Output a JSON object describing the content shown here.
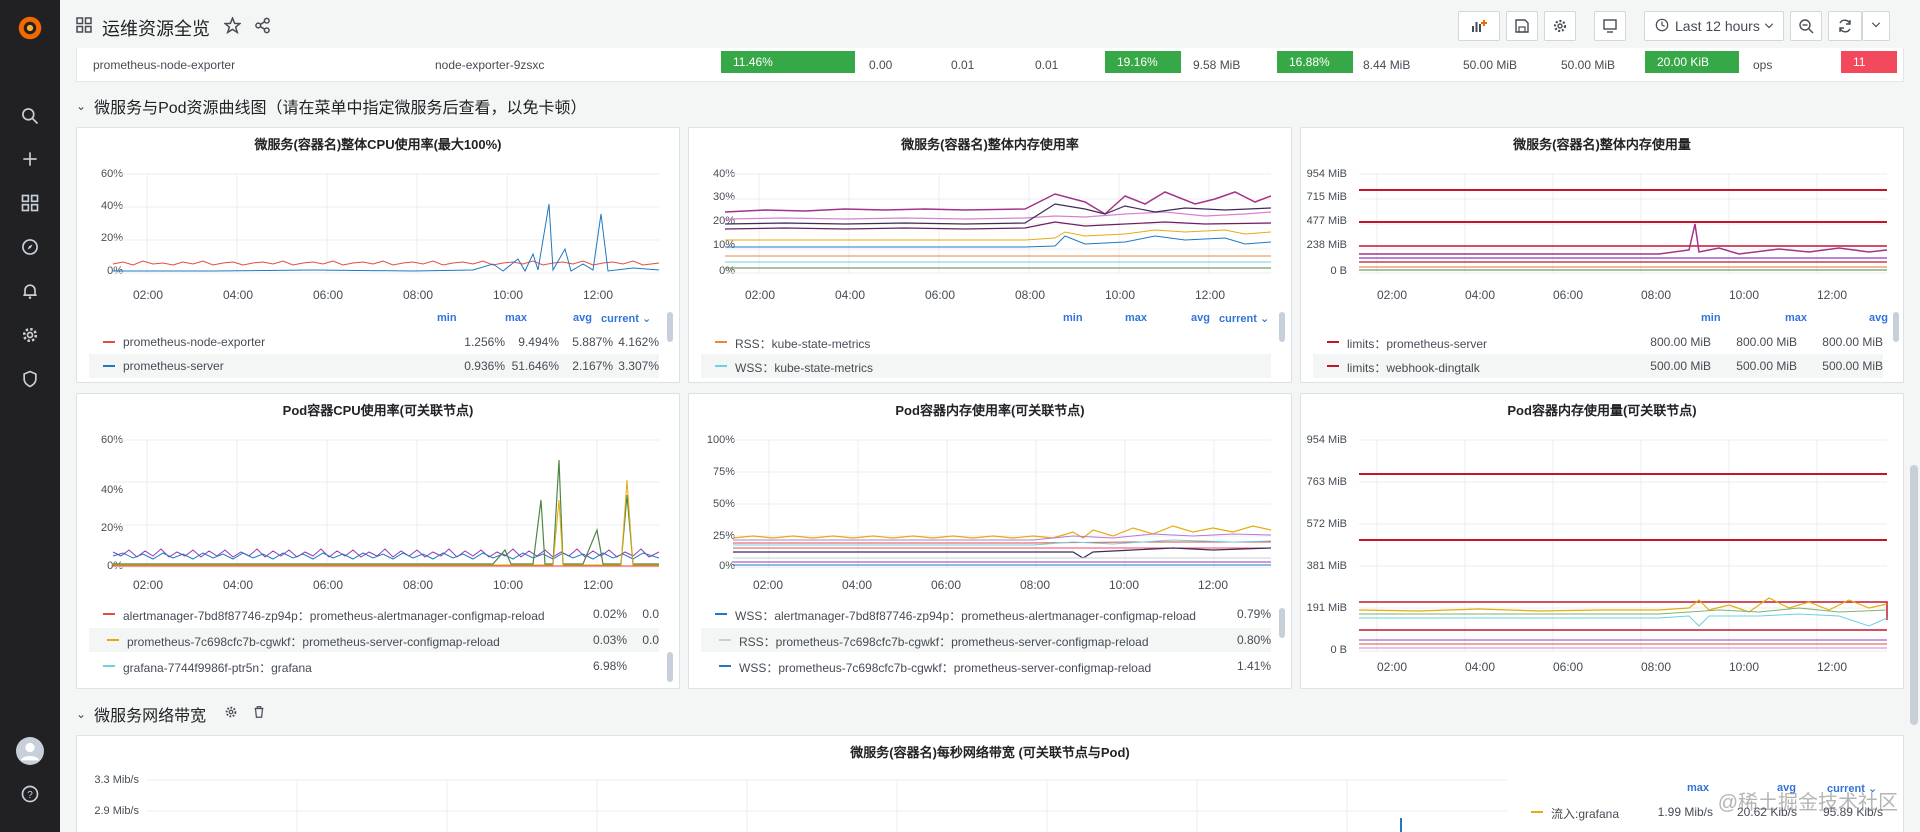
{
  "dashboard": {
    "title": "运维资源全览",
    "time_range": "Last 12 hours"
  },
  "sidebar": {
    "icons": [
      "grafana-logo-icon",
      "search-icon",
      "plus-icon",
      "dashboards-icon",
      "explore-icon",
      "alert-bell-icon",
      "gear-icon",
      "shield-icon",
      "avatar",
      "help-icon"
    ]
  },
  "table_row": {
    "name": "prometheus-node-exporter",
    "pod": "node-exporter-9zsxc",
    "cells": [
      "11.46%",
      "0.00",
      "0.01",
      "0.01",
      "19.16%",
      "9.58 MiB",
      "16.88%",
      "8.44 MiB",
      "50.00 MiB",
      "50.00 MiB",
      "20.00 KiB",
      "ops",
      "11"
    ]
  },
  "rows": {
    "row1": "微服务与Pod资源曲线图（请在菜单中指定微服务后查看，以免卡顿）",
    "row2": "微服务网络带宽"
  },
  "panels": {
    "p1": {
      "title": "微服务(容器名)整体CPU使用率(最大100%)",
      "yticks": [
        "60%",
        "40%",
        "20%",
        "0%"
      ],
      "xticks": [
        "02:00",
        "04:00",
        "06:00",
        "08:00",
        "10:00",
        "12:00"
      ],
      "cols": [
        "min",
        "max",
        "avg",
        "current ⌄"
      ],
      "legend": [
        {
          "name": "prometheus-node-exporter",
          "color": "#e24d42",
          "values": [
            "1.256%",
            "9.494%",
            "5.887%",
            "4.162%"
          ]
        },
        {
          "name": "prometheus-server",
          "color": "#1f78c1",
          "values": [
            "0.936%",
            "51.646%",
            "2.167%",
            "3.307%"
          ]
        }
      ]
    },
    "p2": {
      "title": "微服务(容器名)整体内存使用率",
      "yticks": [
        "40%",
        "30%",
        "20%",
        "10%",
        "0%"
      ],
      "xticks": [
        "02:00",
        "04:00",
        "06:00",
        "08:00",
        "10:00",
        "12:00"
      ],
      "cols": [
        "min",
        "max",
        "avg",
        "current ⌄"
      ],
      "legend": [
        {
          "name": "RSS：kube-state-metrics",
          "color": "#ef843c",
          "values": []
        },
        {
          "name": "WSS：kube-state-metrics",
          "color": "#6ed0e0",
          "values": []
        }
      ]
    },
    "p3": {
      "title": "微服务(容器名)整体内存使用量",
      "yticks": [
        "954 MiB",
        "715 MiB",
        "477 MiB",
        "238 MiB",
        "0 B"
      ],
      "xticks": [
        "02:00",
        "04:00",
        "06:00",
        "08:00",
        "10:00",
        "12:00"
      ],
      "cols": [
        "min",
        "max",
        "avg"
      ],
      "legend": [
        {
          "name": "limits：prometheus-server",
          "color": "#c4162a",
          "values": [
            "800.00 MiB",
            "800.00 MiB",
            "800.00 MiB"
          ]
        },
        {
          "name": "limits：webhook-dingtalk",
          "color": "#c4162a",
          "values": [
            "500.00 MiB",
            "500.00 MiB",
            "500.00 MiB"
          ]
        }
      ]
    },
    "p4": {
      "title": "Pod容器CPU使用率(可关联节点)",
      "yticks": [
        "60%",
        "40%",
        "20%",
        "0%"
      ],
      "xticks": [
        "02:00",
        "04:00",
        "06:00",
        "08:00",
        "10:00",
        "12:00"
      ],
      "legend": [
        {
          "name": "alertmanager-7bd8f87746-zp94p：prometheus-alertmanager-configmap-reload",
          "color": "#e24d42",
          "values": [
            "0.02%",
            "0.0"
          ]
        },
        {
          "name": "prometheus-7c698cfc7b-cgwkf：prometheus-server-configmap-reload",
          "color": "#e5ac0e",
          "values": [
            "0.03%",
            "0.0"
          ]
        },
        {
          "name": "grafana-7744f9986f-ptr5n：grafana",
          "color": "#6ed0e0",
          "values": [
            "6.98%"
          ]
        }
      ]
    },
    "p5": {
      "title": "Pod容器内存使用率(可关联节点)",
      "yticks": [
        "100%",
        "75%",
        "50%",
        "25%",
        "0%"
      ],
      "xticks": [
        "02:00",
        "04:00",
        "06:00",
        "08:00",
        "10:00",
        "12:00"
      ],
      "legend": [
        {
          "name": "WSS：alertmanager-7bd8f87746-zp94p：prometheus-alertmanager-configmap-reload",
          "color": "#1f78c1",
          "values": [
            "0.79%"
          ]
        },
        {
          "name": "RSS：prometheus-7c698cfc7b-cgwkf：prometheus-server-configmap-reload",
          "color": "#c7d0d9",
          "values": [
            "0.80%"
          ]
        },
        {
          "name": "WSS：prometheus-7c698cfc7b-cgwkf：prometheus-server-configmap-reload",
          "color": "#1f78c1",
          "values": [
            "1.41%"
          ]
        }
      ]
    },
    "p6": {
      "title": "Pod容器内存使用量(可关联节点)",
      "yticks": [
        "954 MiB",
        "763 MiB",
        "572 MiB",
        "381 MiB",
        "191 MiB",
        "0 B"
      ],
      "xticks": [
        "02:00",
        "04:00",
        "06:00",
        "08:00",
        "10:00",
        "12:00"
      ]
    },
    "p7": {
      "title": "微服务(容器名)每秒网络带宽 (可关联节点与Pod)",
      "yticks": [
        "3.3 Mib/s",
        "2.9 Mib/s"
      ],
      "cols": [
        "max",
        "avg",
        "current ⌄"
      ],
      "legend": [
        {
          "name": "流入:grafana",
          "color": "#e5ac0e",
          "values": [
            "1.99 Mib/s",
            "20.62 Kib/s",
            "95.89 Kib/s"
          ]
        }
      ]
    }
  },
  "watermark": "@稀土掘金技术社区",
  "colors": {
    "green": "#37a848",
    "red": "#f2495c",
    "blue": "#3274d9"
  }
}
